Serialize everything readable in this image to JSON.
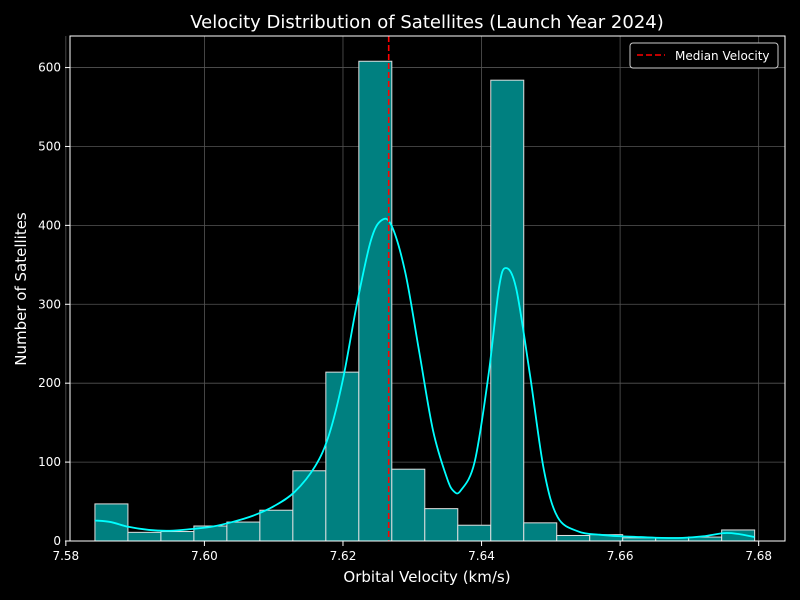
{
  "chart_data": {
    "type": "bar",
    "title": "Velocity Distribution of Satellites (Launch Year 2024)",
    "xlabel": "Orbital Velocity (km/s)",
    "ylabel": "Number of Satellites",
    "xlim": [
      7.5806,
      7.6838
    ],
    "ylim": [
      0,
      640
    ],
    "xticks": [
      7.58,
      7.6,
      7.62,
      7.64,
      7.66,
      7.68
    ],
    "xtick_labels": [
      "7.58",
      "7.60",
      "7.62",
      "7.64",
      "7.66",
      "7.68"
    ],
    "yticks": [
      0,
      100,
      200,
      300,
      400,
      500,
      600
    ],
    "ytick_labels": [
      "0",
      "100",
      "200",
      "300",
      "400",
      "500",
      "600"
    ],
    "grid": true,
    "legend_position": "top-right",
    "bins": {
      "start": 7.5842,
      "width": 0.004761,
      "counts": [
        47,
        11,
        12,
        19,
        24,
        39,
        89,
        214,
        608,
        91,
        41,
        20,
        584,
        23,
        7,
        8,
        4,
        4,
        5,
        14
      ]
    },
    "kde": {
      "x": [
        7.5842,
        7.5865,
        7.589,
        7.592,
        7.595,
        7.598,
        7.601,
        7.604,
        7.607,
        7.61,
        7.613,
        7.616,
        7.618,
        7.62,
        7.622,
        7.624,
        7.6255,
        7.627,
        7.629,
        7.631,
        7.633,
        7.635,
        7.636,
        7.637,
        7.639,
        7.641,
        7.6425,
        7.6435,
        7.645,
        7.647,
        7.649,
        7.651,
        7.654,
        7.657,
        7.66,
        7.663,
        7.666,
        7.669,
        7.672,
        7.675,
        7.677,
        7.6794
      ],
      "y": [
        26,
        24,
        18,
        14,
        13,
        15,
        18,
        24,
        32,
        44,
        62,
        95,
        135,
        205,
        300,
        380,
        406,
        400,
        340,
        240,
        140,
        80,
        63,
        64,
        100,
        210,
        320,
        346,
        320,
        210,
        90,
        30,
        12,
        8,
        6,
        5,
        4,
        4,
        6,
        10,
        9,
        5
      ]
    },
    "median": 7.6266,
    "series": [
      {
        "name": "Median Velocity",
        "color": "#ff0000",
        "style": "dashed"
      }
    ],
    "colors": {
      "bar_fill": "#008080",
      "bar_edge": "#e0e0e0",
      "kde_line": "#00ffff",
      "grid": "#555555",
      "axis": "#ffffff",
      "background": "#000000"
    }
  }
}
